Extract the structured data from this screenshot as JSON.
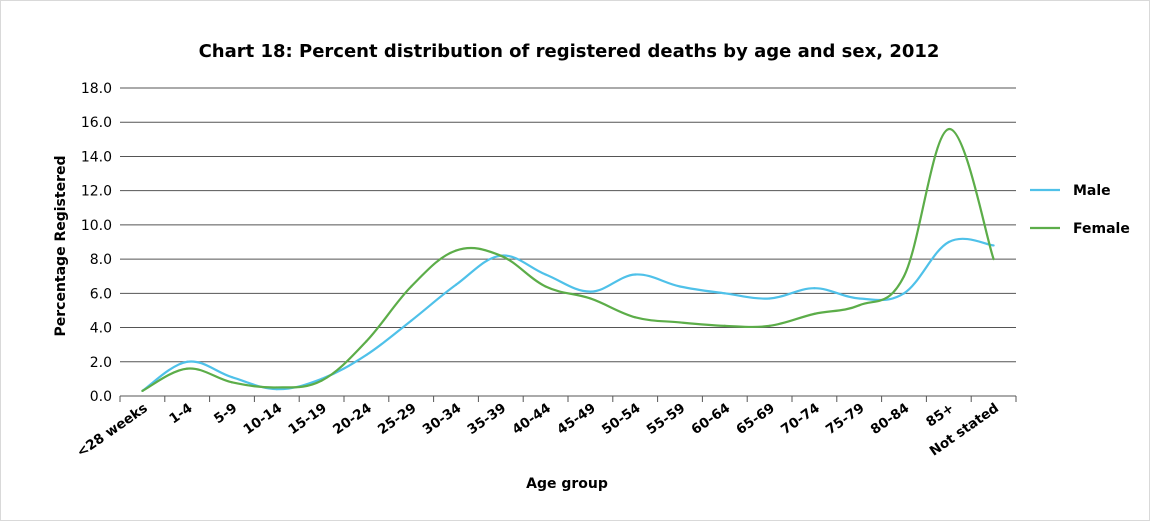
{
  "chart_data": {
    "type": "line",
    "title": "Chart 18: Percent distribution of registered deaths by age and sex, 2012",
    "xlabel": "Age group",
    "ylabel": "Percentage Registered",
    "ylim": [
      0,
      18
    ],
    "yticks": [
      "0.0",
      "2.0",
      "4.0",
      "6.0",
      "8.0",
      "10.0",
      "12.0",
      "14.0",
      "16.0",
      "18.0"
    ],
    "ytick_values": [
      0,
      2,
      4,
      6,
      8,
      10,
      12,
      14,
      16,
      18
    ],
    "grid": true,
    "legend_position": "right",
    "categories": [
      "<28 weeks",
      "1-4",
      "5-9",
      "10-14",
      "15-19",
      "20-24",
      "25-29",
      "30-34",
      "35-39",
      "40-44",
      "45-49",
      "50-54",
      "55-59",
      "60-64",
      "65-69",
      "70-74",
      "75-79",
      "80-84",
      "85+",
      "Not stated"
    ],
    "series": [
      {
        "name": "Male",
        "color": "#4fc1e9",
        "values": [
          0.3,
          2.0,
          1.1,
          0.4,
          1.0,
          2.4,
          4.4,
          6.5,
          8.2,
          7.1,
          6.1,
          7.1,
          6.4,
          6.0,
          5.7,
          6.3,
          5.7,
          6.0,
          9.0,
          8.8
        ]
      },
      {
        "name": "Female",
        "color": "#5cad49",
        "values": [
          0.3,
          1.6,
          0.8,
          0.5,
          0.9,
          3.2,
          6.4,
          8.5,
          8.2,
          6.4,
          5.7,
          4.6,
          4.3,
          4.1,
          4.1,
          4.8,
          5.3,
          7.0,
          15.6,
          8.0
        ]
      }
    ]
  }
}
